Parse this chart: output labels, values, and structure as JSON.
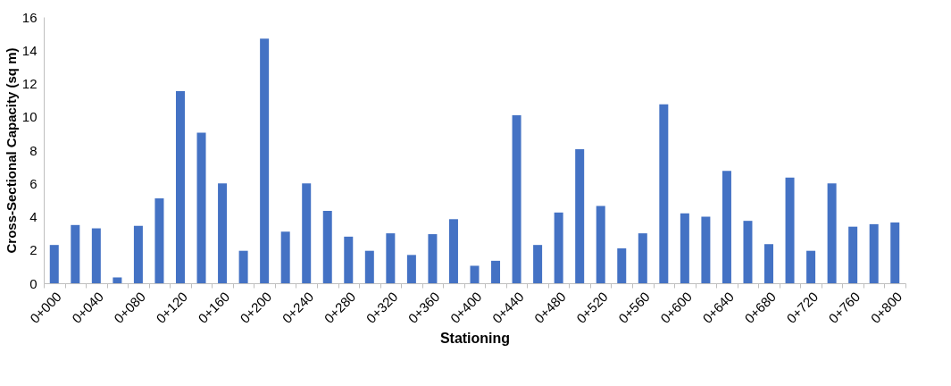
{
  "chart_data": {
    "type": "bar",
    "xlabel": "Stationing",
    "ylabel": "Cross-Sectional Capacity (sq m)",
    "categories": [
      "0+000",
      null,
      "0+040",
      null,
      "0+080",
      null,
      "0+120",
      null,
      "0+160",
      null,
      "0+200",
      null,
      "0+240",
      null,
      "0+280",
      null,
      "0+320",
      null,
      "0+360",
      null,
      "0+400",
      null,
      "0+440",
      null,
      "0+480",
      null,
      "0+520",
      null,
      "0+560",
      null,
      "0+600",
      null,
      "0+640",
      null,
      "0+680",
      null,
      "0+720",
      null,
      "0+760",
      null,
      "0+800"
    ],
    "values": [
      2.3,
      3.5,
      3.3,
      0.35,
      3.45,
      5.1,
      11.55,
      9.05,
      6.0,
      1.95,
      14.7,
      3.1,
      6.0,
      4.35,
      2.8,
      1.95,
      3.0,
      1.7,
      2.95,
      3.85,
      1.05,
      1.35,
      10.1,
      2.3,
      4.25,
      8.05,
      4.65,
      2.1,
      3.0,
      10.75,
      4.2,
      4.0,
      6.75,
      3.75,
      2.35,
      6.35,
      1.95,
      6.0,
      3.4,
      3.55,
      3.65
    ],
    "color": "#4472c4",
    "ylim": [
      0,
      16
    ],
    "yticks": [
      0,
      2,
      4,
      6,
      8,
      10,
      12,
      14,
      16
    ],
    "grid": false
  }
}
